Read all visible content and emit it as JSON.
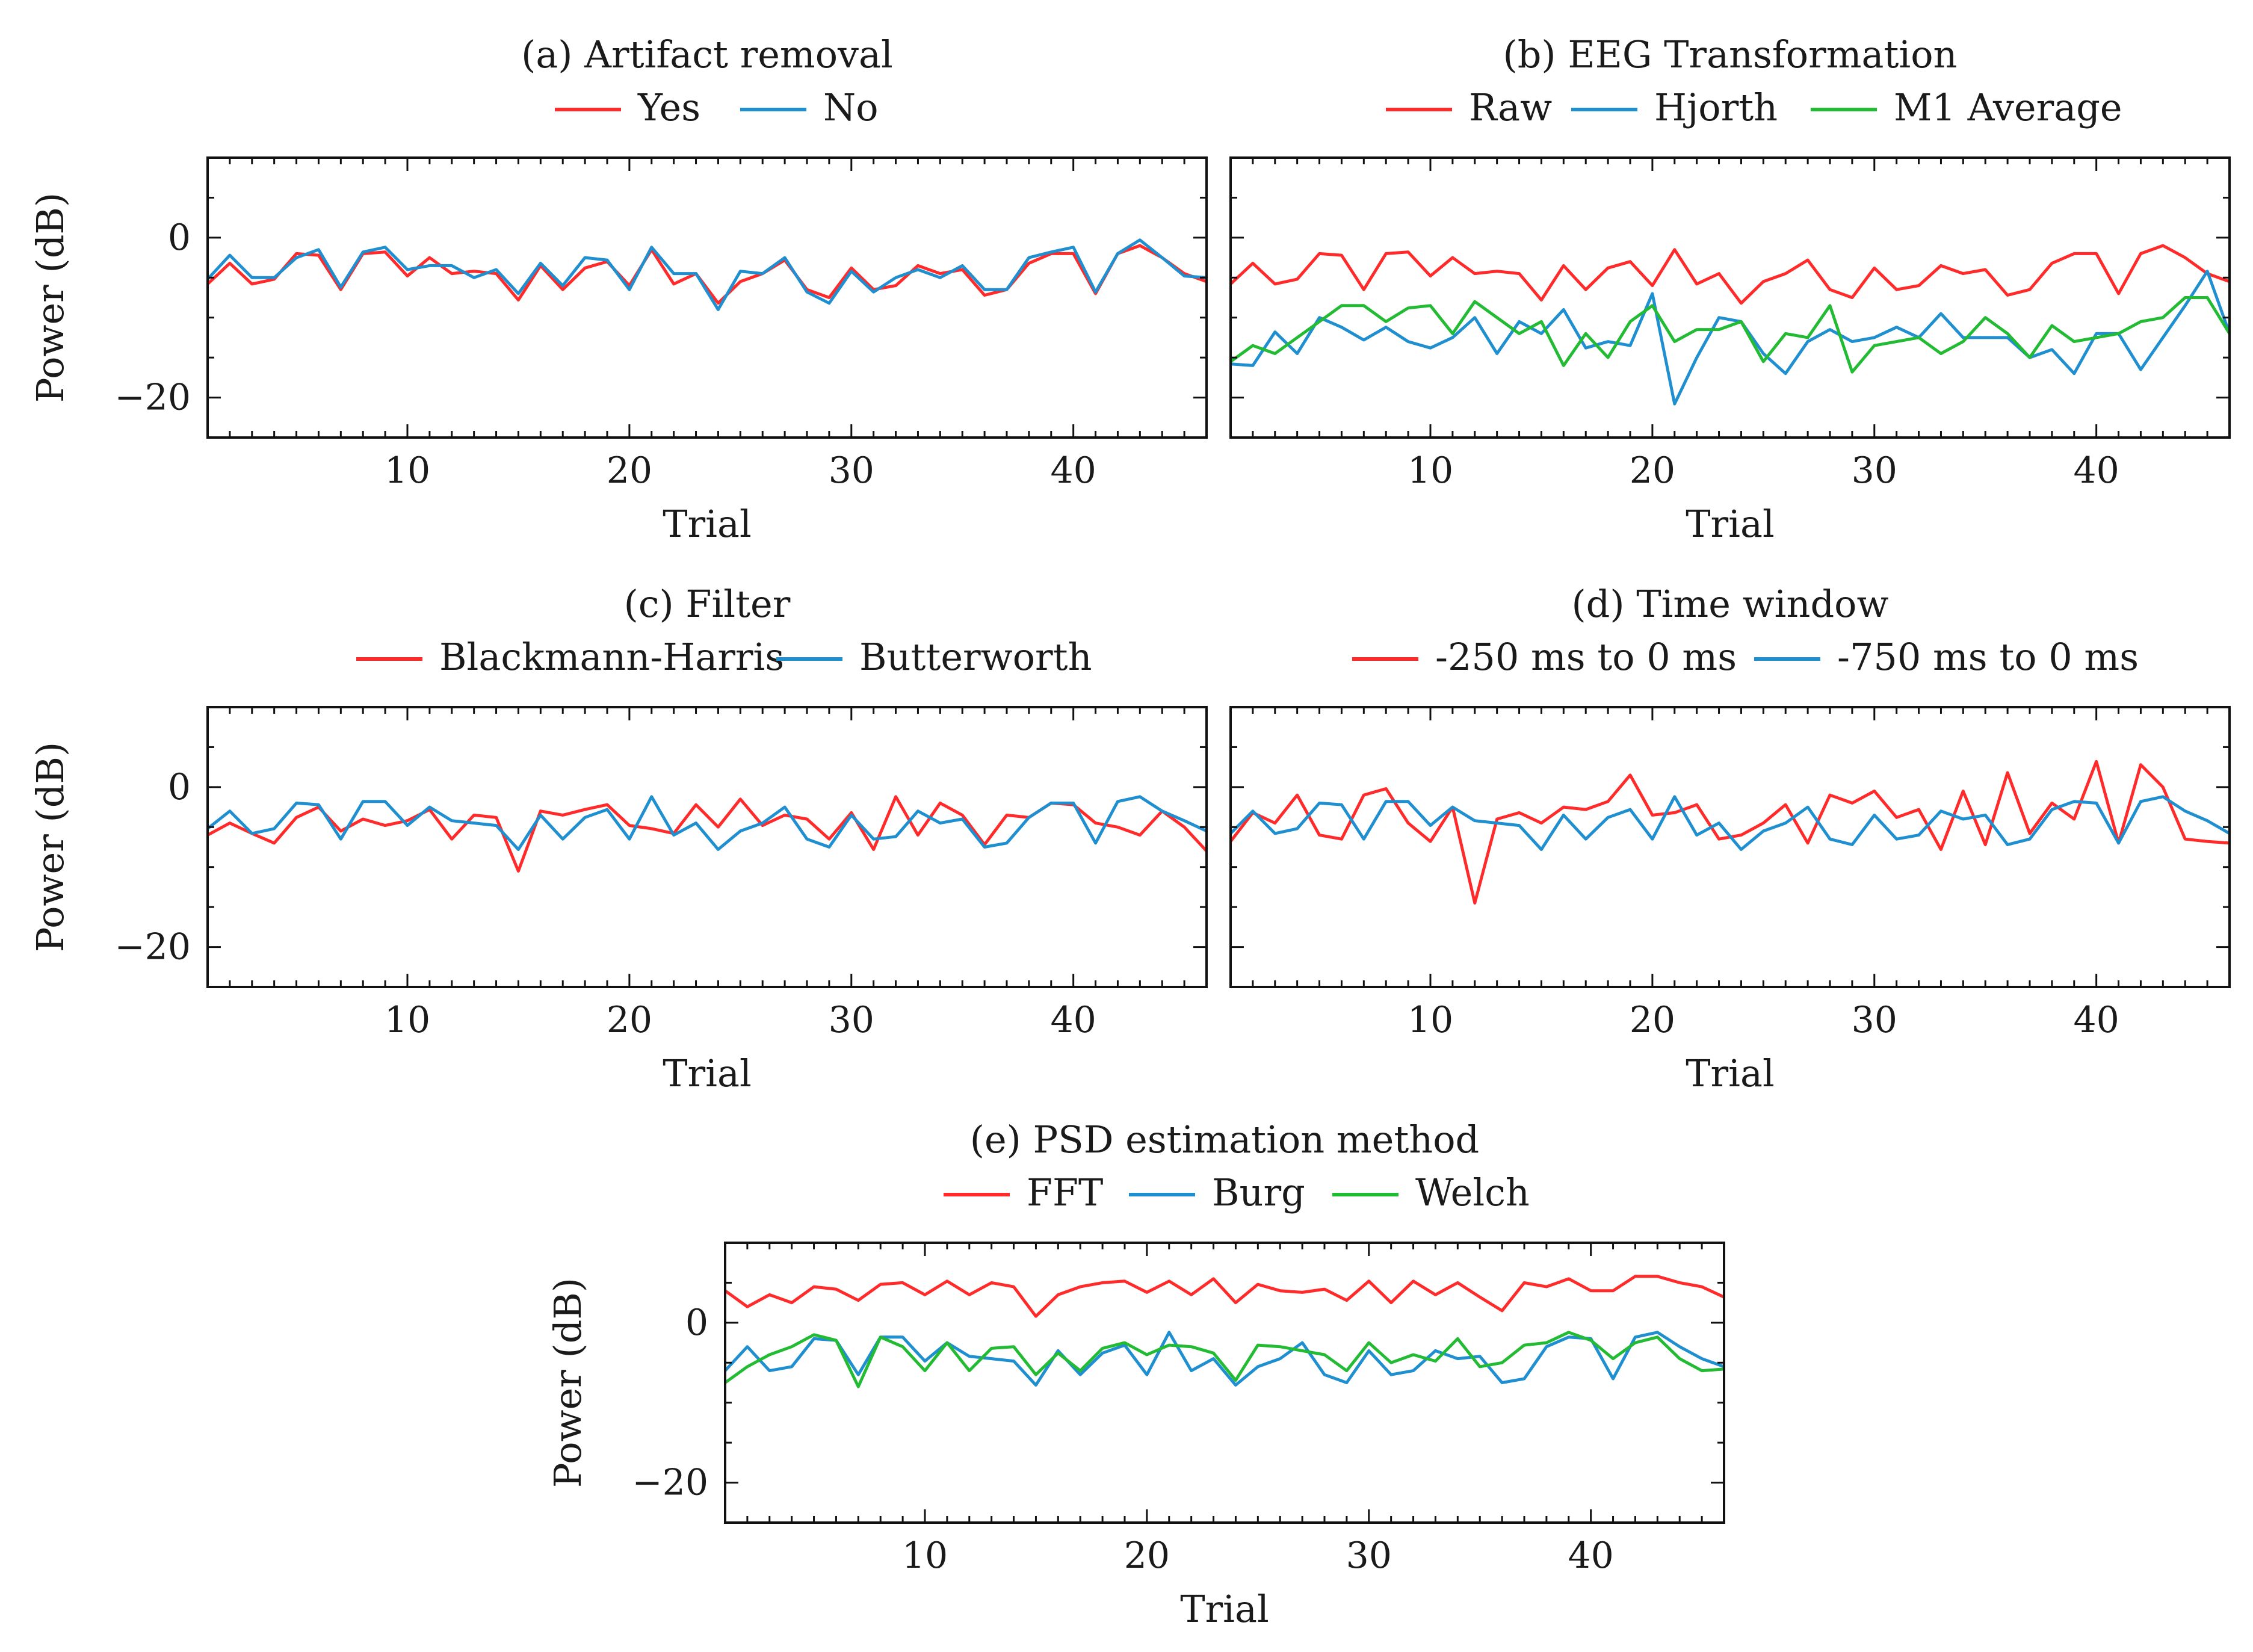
{
  "figure": {
    "charts": [
      {
        "id": "a",
        "type": "line",
        "title": "(a) Artifact removal",
        "xlabel": "Trial",
        "ylabel": "Power (dB)",
        "xlim": [
          1,
          46
        ],
        "ylim": [
          -25,
          10
        ],
        "xticks": [
          10,
          20,
          30,
          40
        ],
        "yticks": [
          0,
          -20
        ],
        "ytick_labels": [
          "0",
          "−20"
        ],
        "x": [
          1,
          2,
          3,
          4,
          5,
          6,
          7,
          8,
          9,
          10,
          11,
          12,
          13,
          14,
          15,
          16,
          17,
          18,
          19,
          20,
          21,
          22,
          23,
          24,
          25,
          26,
          27,
          28,
          29,
          30,
          31,
          32,
          33,
          34,
          35,
          36,
          37,
          38,
          39,
          40,
          41,
          42,
          43,
          44,
          45,
          46
        ],
        "series": [
          {
            "name": "Yes",
            "color": "#ff2a2a",
            "values": [
              -5.8,
              -3.2,
              -5.8,
              -5.2,
              -2.0,
              -2.2,
              -6.5,
              -2.0,
              -1.8,
              -4.8,
              -2.5,
              -4.5,
              -4.2,
              -4.5,
              -7.8,
              -3.5,
              -6.5,
              -3.8,
              -3.0,
              -6.0,
              -1.5,
              -5.8,
              -4.5,
              -8.2,
              -5.5,
              -4.5,
              -2.8,
              -6.5,
              -7.5,
              -3.8,
              -6.5,
              -6.0,
              -3.5,
              -4.5,
              -4.0,
              -7.2,
              -6.5,
              -3.2,
              -2.0,
              -2.0,
              -7.0,
              -2.0,
              -1.0,
              -2.5,
              -4.5,
              -5.5
            ]
          },
          {
            "name": "No",
            "color": "#1f8fd0",
            "values": [
              -5.2,
              -2.2,
              -5.0,
              -5.0,
              -2.5,
              -1.5,
              -6.2,
              -1.8,
              -1.2,
              -4.0,
              -3.5,
              -3.5,
              -5.0,
              -4.0,
              -7.0,
              -3.2,
              -6.0,
              -2.5,
              -2.8,
              -6.5,
              -1.2,
              -4.5,
              -4.5,
              -9.0,
              -4.2,
              -4.5,
              -2.5,
              -6.8,
              -8.2,
              -4.2,
              -6.8,
              -5.0,
              -4.0,
              -5.0,
              -3.5,
              -6.5,
              -6.5,
              -2.5,
              -1.8,
              -1.2,
              -6.8,
              -2.0,
              -0.3,
              -2.5,
              -4.8,
              -5.0
            ]
          }
        ]
      },
      {
        "id": "b",
        "type": "line",
        "title": "(b) EEG Transformation",
        "xlabel": "Trial",
        "ylabel": "",
        "xlim": [
          1,
          46
        ],
        "ylim": [
          -25,
          10
        ],
        "xticks": [
          10,
          20,
          30,
          40
        ],
        "yticks": [],
        "ytick_labels": [],
        "x": [
          1,
          2,
          3,
          4,
          5,
          6,
          7,
          8,
          9,
          10,
          11,
          12,
          13,
          14,
          15,
          16,
          17,
          18,
          19,
          20,
          21,
          22,
          23,
          24,
          25,
          26,
          27,
          28,
          29,
          30,
          31,
          32,
          33,
          34,
          35,
          36,
          37,
          38,
          39,
          40,
          41,
          42,
          43,
          44,
          45,
          46
        ],
        "series": [
          {
            "name": "Raw",
            "color": "#ff2a2a",
            "values": [
              -5.8,
              -3.2,
              -5.8,
              -5.2,
              -2.0,
              -2.2,
              -6.5,
              -2.0,
              -1.8,
              -4.8,
              -2.5,
              -4.5,
              -4.2,
              -4.5,
              -7.8,
              -3.5,
              -6.5,
              -3.8,
              -3.0,
              -6.0,
              -1.5,
              -5.8,
              -4.5,
              -8.2,
              -5.5,
              -4.5,
              -2.8,
              -6.5,
              -7.5,
              -3.8,
              -6.5,
              -6.0,
              -3.5,
              -4.5,
              -4.0,
              -7.2,
              -6.5,
              -3.2,
              -2.0,
              -2.0,
              -7.0,
              -2.0,
              -1.0,
              -2.5,
              -4.5,
              -5.5
            ]
          },
          {
            "name": "Hjorth",
            "color": "#1f8fd0",
            "values": [
              -15.8,
              -16.0,
              -11.8,
              -14.5,
              -10.0,
              -11.2,
              -12.8,
              -11.2,
              -13.0,
              -13.8,
              -12.5,
              -10.0,
              -14.5,
              -10.5,
              -12.0,
              -9.0,
              -13.8,
              -13.0,
              -13.5,
              -7.0,
              -20.8,
              -15.0,
              -10.0,
              -10.5,
              -14.5,
              -17.0,
              -13.0,
              -11.5,
              -13.0,
              -12.5,
              -11.2,
              -12.5,
              -9.5,
              -12.5,
              -12.5,
              -12.5,
              -15.0,
              -14.0,
              -17.0,
              -12.0,
              -12.0,
              -16.5,
              -12.5,
              -8.5,
              -4.2,
              -12.0
            ]
          },
          {
            "name": "M1 Average",
            "color": "#22bb33",
            "values": [
              -15.5,
              -13.5,
              -14.5,
              -12.5,
              -10.5,
              -8.5,
              -8.5,
              -10.5,
              -8.8,
              -8.5,
              -12.0,
              -8.0,
              -10.0,
              -12.0,
              -10.5,
              -16.0,
              -12.0,
              -15.0,
              -10.5,
              -8.5,
              -13.0,
              -11.5,
              -11.5,
              -10.5,
              -15.5,
              -12.0,
              -12.5,
              -8.5,
              -16.8,
              -13.5,
              -13.0,
              -12.5,
              -14.5,
              -13.0,
              -10.0,
              -12.0,
              -15.0,
              -11.0,
              -13.0,
              -12.5,
              -12.0,
              -10.5,
              -10.0,
              -7.5,
              -7.5,
              -12.0
            ]
          }
        ]
      },
      {
        "id": "c",
        "type": "line",
        "title": "(c) Filter",
        "xlabel": "Trial",
        "ylabel": "Power (dB)",
        "xlim": [
          1,
          46
        ],
        "ylim": [
          -25,
          10
        ],
        "xticks": [
          10,
          20,
          30,
          40
        ],
        "yticks": [
          0,
          -20
        ],
        "ytick_labels": [
          "0",
          "−20"
        ],
        "x": [
          1,
          2,
          3,
          4,
          5,
          6,
          7,
          8,
          9,
          10,
          11,
          12,
          13,
          14,
          15,
          16,
          17,
          18,
          19,
          20,
          21,
          22,
          23,
          24,
          25,
          26,
          27,
          28,
          29,
          30,
          31,
          32,
          33,
          34,
          35,
          36,
          37,
          38,
          39,
          40,
          41,
          42,
          43,
          44,
          45,
          46
        ],
        "series": [
          {
            "name": "Blackmann-Harris",
            "color": "#ff2a2a",
            "values": [
              -6.0,
              -4.5,
              -5.8,
              -7.0,
              -3.8,
              -2.5,
              -5.5,
              -4.0,
              -4.8,
              -4.2,
              -2.8,
              -6.5,
              -3.5,
              -3.8,
              -10.5,
              -3.0,
              -3.5,
              -2.8,
              -2.2,
              -4.8,
              -5.2,
              -5.8,
              -2.2,
              -5.0,
              -1.5,
              -4.8,
              -3.5,
              -4.0,
              -6.5,
              -3.2,
              -7.8,
              -1.2,
              -6.0,
              -2.0,
              -3.5,
              -7.2,
              -3.5,
              -3.8,
              -2.0,
              -2.2,
              -4.5,
              -5.0,
              -6.0,
              -3.0,
              -5.0,
              -8.0
            ]
          },
          {
            "name": "Butterworth",
            "color": "#1f8fd0",
            "values": [
              -5.2,
              -3.0,
              -5.8,
              -5.2,
              -2.0,
              -2.2,
              -6.5,
              -1.8,
              -1.8,
              -4.8,
              -2.5,
              -4.2,
              -4.5,
              -4.8,
              -7.8,
              -3.5,
              -6.5,
              -3.8,
              -2.8,
              -6.5,
              -1.2,
              -6.0,
              -4.5,
              -7.8,
              -5.5,
              -4.5,
              -2.5,
              -6.5,
              -7.5,
              -3.5,
              -6.5,
              -6.2,
              -3.0,
              -4.5,
              -4.0,
              -7.5,
              -7.0,
              -3.8,
              -2.0,
              -2.0,
              -7.0,
              -1.8,
              -1.2,
              -3.0,
              -4.2,
              -5.5
            ]
          }
        ]
      },
      {
        "id": "d",
        "type": "line",
        "title": "(d) Time window",
        "xlabel": "Trial",
        "ylabel": "",
        "xlim": [
          1,
          46
        ],
        "ylim": [
          -25,
          10
        ],
        "xticks": [
          10,
          20,
          30,
          40
        ],
        "yticks": [],
        "ytick_labels": [],
        "x": [
          1,
          2,
          3,
          4,
          5,
          6,
          7,
          8,
          9,
          10,
          11,
          12,
          13,
          14,
          15,
          16,
          17,
          18,
          19,
          20,
          21,
          22,
          23,
          24,
          25,
          26,
          27,
          28,
          29,
          30,
          31,
          32,
          33,
          34,
          35,
          36,
          37,
          38,
          39,
          40,
          41,
          42,
          43,
          44,
          45,
          46
        ],
        "series": [
          {
            "name": "-250 ms to 0 ms",
            "color": "#ff2a2a",
            "values": [
              -6.8,
              -3.2,
              -4.5,
              -1.0,
              -6.0,
              -6.5,
              -1.0,
              -0.2,
              -4.5,
              -6.8,
              -2.5,
              -14.5,
              -4.0,
              -3.2,
              -4.5,
              -2.5,
              -2.8,
              -1.8,
              1.5,
              -3.5,
              -3.2,
              -2.2,
              -6.5,
              -6.0,
              -4.5,
              -2.2,
              -7.0,
              -1.0,
              -2.0,
              -0.5,
              -3.8,
              -2.8,
              -7.8,
              -0.5,
              -7.2,
              1.8,
              -5.8,
              -2.0,
              -4.0,
              3.2,
              -7.0,
              2.8,
              0.0,
              -6.5,
              -6.8,
              -7.0
            ]
          },
          {
            "name": "-750 ms to 0 ms",
            "color": "#1f8fd0",
            "values": [
              -5.8,
              -3.0,
              -5.8,
              -5.2,
              -2.0,
              -2.2,
              -6.5,
              -1.8,
              -1.8,
              -4.8,
              -2.5,
              -4.2,
              -4.5,
              -4.8,
              -7.8,
              -3.5,
              -6.5,
              -3.8,
              -2.8,
              -6.5,
              -1.2,
              -6.0,
              -4.5,
              -7.8,
              -5.5,
              -4.5,
              -2.5,
              -6.5,
              -7.2,
              -3.5,
              -6.5,
              -6.0,
              -3.0,
              -4.0,
              -3.5,
              -7.2,
              -6.5,
              -2.8,
              -1.8,
              -2.0,
              -7.0,
              -1.8,
              -1.2,
              -3.0,
              -4.2,
              -5.8
            ]
          }
        ]
      },
      {
        "id": "e",
        "type": "line",
        "title": "(e) PSD estimation method",
        "xlabel": "Trial",
        "ylabel": "Power (dB)",
        "xlim": [
          1,
          46
        ],
        "ylim": [
          -25,
          10
        ],
        "xticks": [
          10,
          20,
          30,
          40
        ],
        "yticks": [
          0,
          -20
        ],
        "ytick_labels": [
          "0",
          "−20"
        ],
        "x": [
          1,
          2,
          3,
          4,
          5,
          6,
          7,
          8,
          9,
          10,
          11,
          12,
          13,
          14,
          15,
          16,
          17,
          18,
          19,
          20,
          21,
          22,
          23,
          24,
          25,
          26,
          27,
          28,
          29,
          30,
          31,
          32,
          33,
          34,
          35,
          36,
          37,
          38,
          39,
          40,
          41,
          42,
          43,
          44,
          45,
          46
        ],
        "series": [
          {
            "name": "FFT",
            "color": "#ff2a2a",
            "values": [
              4.0,
              2.0,
              3.5,
              2.5,
              4.5,
              4.2,
              2.8,
              4.8,
              5.0,
              3.5,
              5.2,
              3.5,
              5.0,
              4.5,
              0.8,
              3.5,
              4.5,
              5.0,
              5.2,
              3.8,
              5.2,
              3.5,
              5.5,
              2.5,
              4.8,
              4.0,
              3.8,
              4.2,
              2.8,
              5.2,
              2.5,
              5.2,
              3.5,
              5.0,
              3.2,
              1.5,
              5.0,
              4.5,
              5.5,
              4.0,
              4.0,
              5.8,
              5.8,
              5.0,
              4.5,
              3.2
            ]
          },
          {
            "name": "Burg",
            "color": "#1f8fd0",
            "values": [
              -6.0,
              -3.0,
              -6.0,
              -5.5,
              -2.0,
              -2.2,
              -6.5,
              -1.8,
              -1.8,
              -4.8,
              -2.5,
              -4.2,
              -4.5,
              -4.8,
              -7.8,
              -3.5,
              -6.5,
              -3.8,
              -2.8,
              -6.5,
              -1.2,
              -6.0,
              -4.5,
              -7.8,
              -5.5,
              -4.5,
              -2.5,
              -6.5,
              -7.5,
              -3.5,
              -6.5,
              -6.0,
              -3.5,
              -4.5,
              -4.2,
              -7.5,
              -7.0,
              -3.0,
              -1.8,
              -2.0,
              -7.0,
              -1.8,
              -1.2,
              -3.0,
              -4.5,
              -5.5
            ]
          },
          {
            "name": "Welch",
            "color": "#22bb33",
            "values": [
              -7.5,
              -5.5,
              -4.0,
              -3.0,
              -1.5,
              -2.2,
              -8.0,
              -1.8,
              -3.0,
              -6.0,
              -2.5,
              -6.0,
              -3.2,
              -3.0,
              -6.5,
              -3.8,
              -6.0,
              -3.2,
              -2.5,
              -4.0,
              -2.8,
              -3.0,
              -3.8,
              -7.2,
              -2.8,
              -3.0,
              -3.5,
              -4.0,
              -6.0,
              -2.5,
              -5.0,
              -4.0,
              -4.8,
              -2.0,
              -5.5,
              -5.0,
              -2.8,
              -2.5,
              -1.2,
              -2.2,
              -4.5,
              -2.5,
              -1.8,
              -4.5,
              -6.0,
              -5.8
            ]
          }
        ]
      }
    ]
  }
}
